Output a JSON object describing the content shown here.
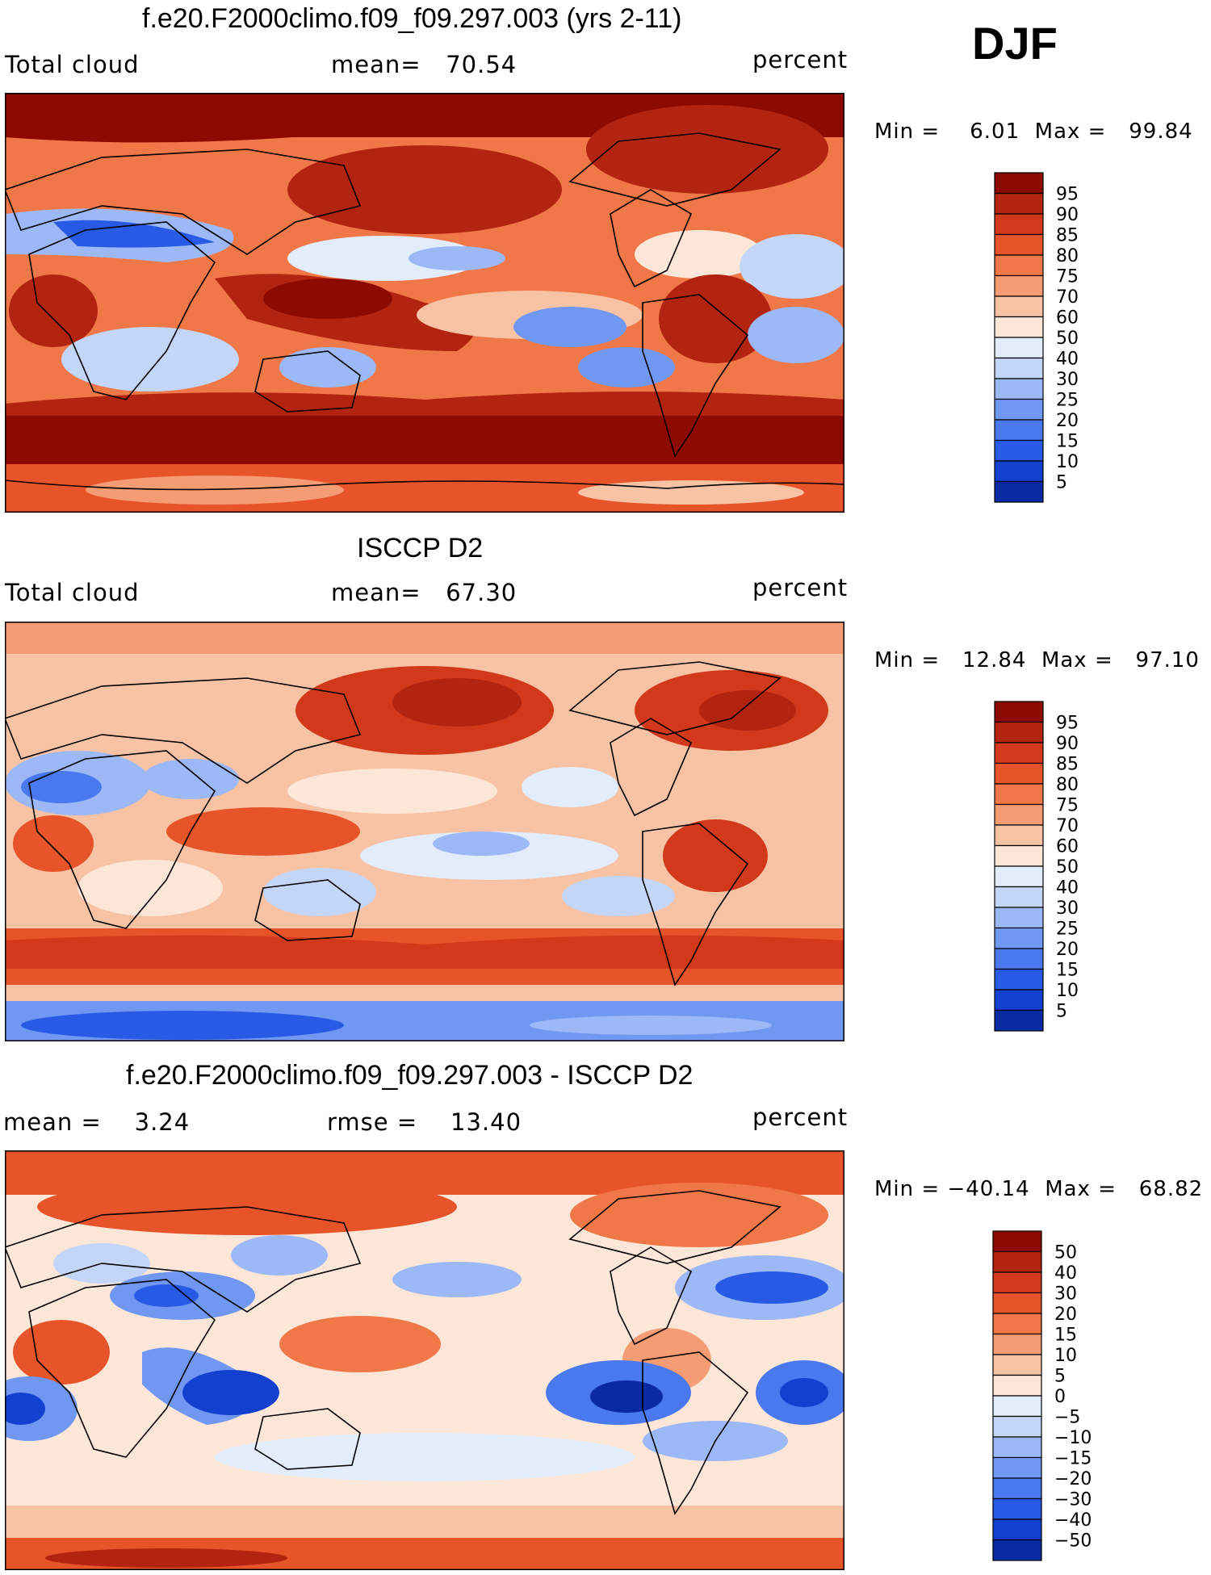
{
  "season": "DJF",
  "color_stops": {
    "cloud": [
      "#0a147a",
      "#0a2aa4",
      "#1440d0",
      "#285ae6",
      "#4a78ee",
      "#7098f2",
      "#9cb8f6",
      "#c4d6f8",
      "#e2ecfa",
      "#fce6d8",
      "#f8c2a4",
      "#f69c74",
      "#f07848",
      "#e8542a",
      "#d2391a",
      "#b22410",
      "#8c0a00"
    ],
    "diff": [
      "#0a147a",
      "#0a2aa4",
      "#1440d0",
      "#285ae6",
      "#4a78ee",
      "#7098f2",
      "#9cb8f6",
      "#c4d6f8",
      "#e2ecfa",
      "#fce6d8",
      "#f8c2a4",
      "#f69c74",
      "#f07848",
      "#e8542a",
      "#d2391a",
      "#b22410",
      "#8c0a00"
    ]
  },
  "panels": [
    {
      "title": "f.e20.F2000climo.f09_f09.297.003 (yrs 2-11)",
      "left_label": "Total cloud",
      "center_label": "mean=   70.54",
      "units": "percent",
      "minmax": "Min =    6.01  Max =   99.84",
      "colorbar_labels": [
        "95",
        "90",
        "85",
        "80",
        "75",
        "70",
        "60",
        "50",
        "40",
        "30",
        "25",
        "20",
        "15",
        "10",
        "5"
      ],
      "field": "model"
    },
    {
      "title": "ISCCP D2",
      "left_label": "Total cloud",
      "center_label": "mean=   67.30",
      "units": "percent",
      "minmax": "Min =   12.84  Max =   97.10",
      "colorbar_labels": [
        "95",
        "90",
        "85",
        "80",
        "75",
        "70",
        "60",
        "50",
        "40",
        "30",
        "25",
        "20",
        "15",
        "10",
        "5"
      ],
      "field": "obs"
    },
    {
      "title": "f.e20.F2000climo.f09_f09.297.003 - ISCCP D2",
      "left_label": "mean =    3.24",
      "center_label": "rmse =    13.40",
      "units": "percent",
      "minmax": "Min = −40.14  Max =   68.82",
      "colorbar_labels": [
        "50",
        "40",
        "30",
        "20",
        "15",
        "10",
        "5",
        "0",
        "−5",
        "−10",
        "−15",
        "−20",
        "−30",
        "−40",
        "−50"
      ],
      "field": "diff"
    }
  ]
}
